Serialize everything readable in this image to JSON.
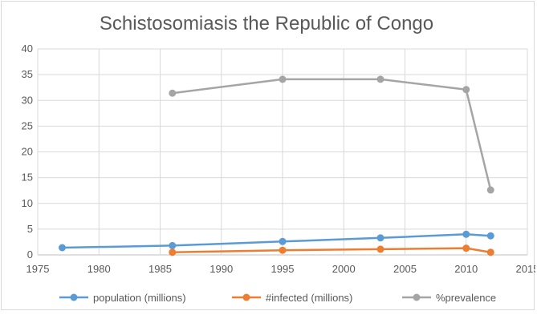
{
  "chart_data": {
    "type": "scatter",
    "title": "Schistosomiasis the Republic of Congo",
    "xlabel": "",
    "ylabel": "",
    "xlim": [
      1975,
      2015
    ],
    "ylim": [
      0,
      40
    ],
    "x_ticks": [
      1975,
      1980,
      1985,
      1990,
      1995,
      2000,
      2005,
      2010,
      2015
    ],
    "y_ticks": [
      0,
      5,
      10,
      15,
      20,
      25,
      30,
      35,
      40
    ],
    "grid": true,
    "legend_position": "bottom",
    "series": [
      {
        "name": "population (millions)",
        "color": "#5B9BD5",
        "points": [
          [
            1977,
            1.4
          ],
          [
            1986,
            1.8
          ],
          [
            1995,
            2.6
          ],
          [
            2003,
            3.3
          ],
          [
            2010,
            4.0
          ],
          [
            2012,
            3.7
          ]
        ]
      },
      {
        "name": "#infected (millions)",
        "color": "#ED7D31",
        "points": [
          [
            1986,
            0.5
          ],
          [
            1995,
            0.9
          ],
          [
            2003,
            1.1
          ],
          [
            2010,
            1.3
          ],
          [
            2012,
            0.5
          ]
        ]
      },
      {
        "name": "%prevalence",
        "color": "#A5A5A5",
        "points": [
          [
            1986,
            31.4
          ],
          [
            1995,
            34.1
          ],
          [
            2003,
            34.1
          ],
          [
            2010,
            32.1
          ],
          [
            2012,
            12.6
          ]
        ]
      }
    ]
  }
}
